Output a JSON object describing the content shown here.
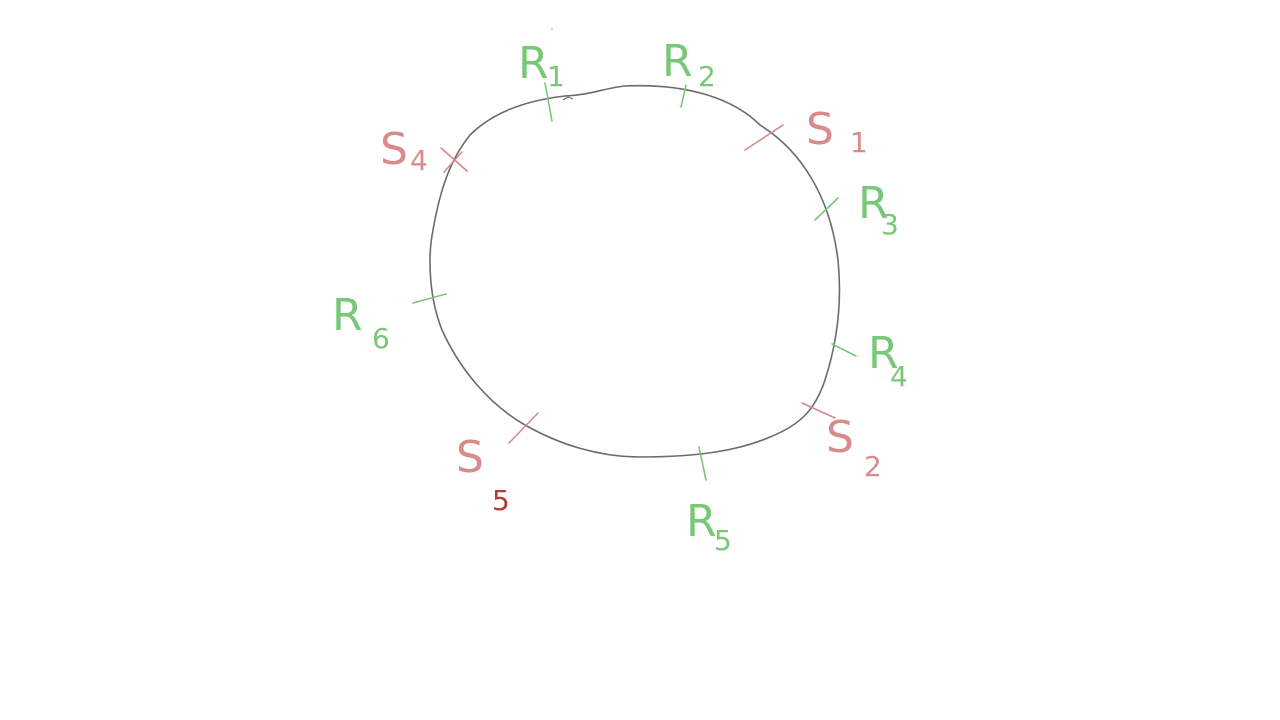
{
  "colors": {
    "background": "#ffffff",
    "ring": "#6b6b6b",
    "replica": "#78c878",
    "shard": "#d98a8a",
    "shard_dark": "#b33a3a"
  },
  "ring_markers": [
    {
      "id": "R1",
      "main": "R",
      "sub": "1",
      "kind": "replica"
    },
    {
      "id": "R2",
      "main": "R",
      "sub": "2",
      "kind": "replica"
    },
    {
      "id": "S1",
      "main": "S",
      "sub": "1",
      "kind": "shard"
    },
    {
      "id": "R3",
      "main": "R",
      "sub": "3",
      "kind": "replica"
    },
    {
      "id": "R4",
      "main": "R",
      "sub": "4",
      "kind": "replica"
    },
    {
      "id": "S2",
      "main": "S",
      "sub": "2",
      "kind": "shard"
    },
    {
      "id": "R5",
      "main": "R",
      "sub": "5",
      "kind": "replica"
    },
    {
      "id": "S5",
      "main": "S",
      "sub": "5",
      "kind": "shard_dark_sub"
    },
    {
      "id": "R6",
      "main": "R",
      "sub": "6",
      "kind": "replica"
    },
    {
      "id": "S4",
      "main": "S",
      "sub": "4",
      "kind": "shard"
    }
  ]
}
